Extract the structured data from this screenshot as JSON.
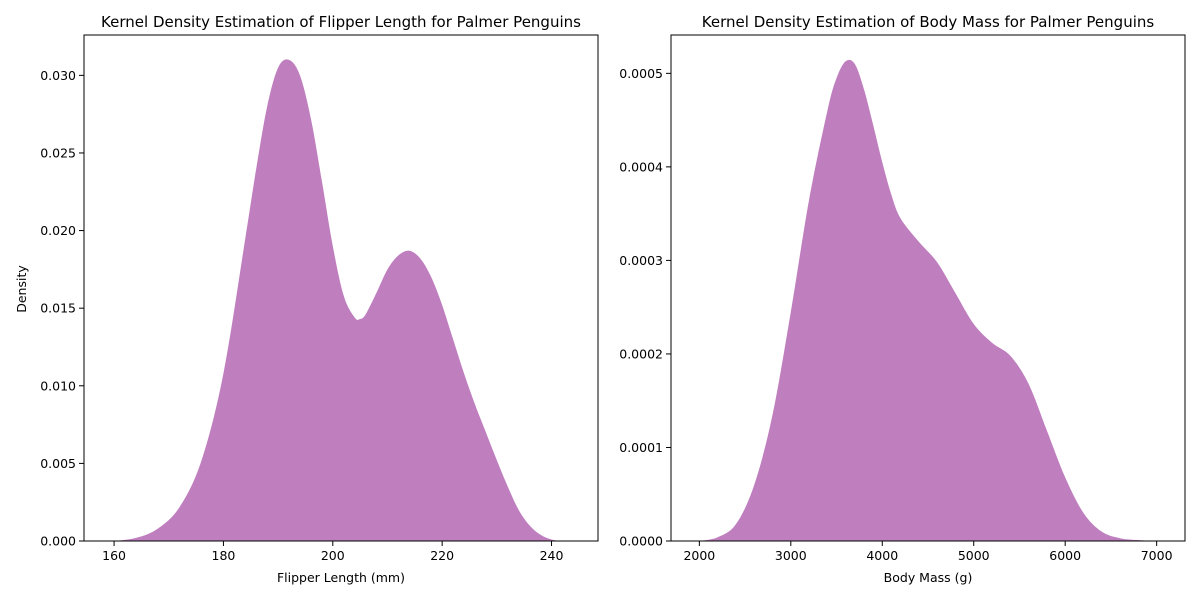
{
  "chart_data": [
    {
      "type": "area",
      "title": "Kernel Density Estimation of Flipper Length for Palmer Penguins",
      "xlabel": "Flipper Length (mm)",
      "ylabel": "Density",
      "xlim": [
        154.5,
        248.5
      ],
      "ylim": [
        0,
        0.0326
      ],
      "x_ticks": [
        160,
        180,
        200,
        220,
        240
      ],
      "y_ticks": [
        0.0,
        0.005,
        0.01,
        0.015,
        0.02,
        0.025,
        0.03
      ],
      "x_tick_labels": [
        "160",
        "180",
        "200",
        "220",
        "240"
      ],
      "y_tick_labels": [
        "0.000",
        "0.005",
        "0.010",
        "0.015",
        "0.020",
        "0.025",
        "0.030"
      ],
      "fill_color": "#bf7fbf",
      "grid": false,
      "series": [
        {
          "x": [
            160,
            164,
            168,
            172,
            176,
            180,
            184,
            186,
            188,
            190,
            192,
            194,
            196,
            198,
            200,
            202,
            204,
            205,
            206,
            208,
            210,
            212,
            214,
            216,
            218,
            220,
            222,
            224,
            226,
            228,
            230,
            232,
            234,
            236,
            238,
            240,
            242,
            244
          ],
          "y": [
            0.0,
            0.0002,
            0.0008,
            0.0022,
            0.0052,
            0.0108,
            0.0195,
            0.024,
            0.028,
            0.0305,
            0.031,
            0.03,
            0.0272,
            0.0232,
            0.019,
            0.0158,
            0.0144,
            0.0143,
            0.0146,
            0.016,
            0.0175,
            0.0184,
            0.0187,
            0.0182,
            0.017,
            0.0152,
            0.013,
            0.0108,
            0.0088,
            0.007,
            0.0052,
            0.0035,
            0.002,
            0.001,
            0.0004,
            0.0001,
            0.0,
            0.0
          ]
        }
      ]
    },
    {
      "type": "area",
      "title": "Kernel Density Estimation of Body Mass for Palmer Penguins",
      "xlabel": "Body Mass (g)",
      "ylabel": "",
      "xlim": [
        1690,
        7310
      ],
      "ylim": [
        0,
        0.000541
      ],
      "x_ticks": [
        2000,
        3000,
        4000,
        5000,
        6000,
        7000
      ],
      "y_ticks": [
        0.0,
        0.0001,
        0.0002,
        0.0003,
        0.0004,
        0.0005
      ],
      "x_tick_labels": [
        "2000",
        "3000",
        "4000",
        "5000",
        "6000",
        "7000"
      ],
      "y_tick_labels": [
        "0.0000",
        "0.0001",
        "0.0002",
        "0.0003",
        "0.0004",
        "0.0005"
      ],
      "fill_color": "#bf7fbf",
      "grid": false,
      "series": [
        {
          "x": [
            2000,
            2200,
            2400,
            2600,
            2800,
            3000,
            3200,
            3400,
            3500,
            3600,
            3700,
            3800,
            3900,
            4000,
            4100,
            4200,
            4400,
            4600,
            4800,
            5000,
            5200,
            5400,
            5600,
            5800,
            6000,
            6200,
            6400,
            6600,
            6800,
            7000
          ],
          "y": [
            0.0,
            4e-06,
            1.8e-05,
            6e-05,
            0.000135,
            0.000245,
            0.000365,
            0.00046,
            0.000495,
            0.000513,
            0.00051,
            0.000483,
            0.000445,
            0.000405,
            0.00037,
            0.000345,
            0.00032,
            0.000298,
            0.000265,
            0.000232,
            0.000212,
            0.000198,
            0.000168,
            0.000118,
            6.8e-05,
            3e-05,
            1e-05,
            3e-06,
            1e-06,
            0.0
          ]
        }
      ]
    }
  ]
}
